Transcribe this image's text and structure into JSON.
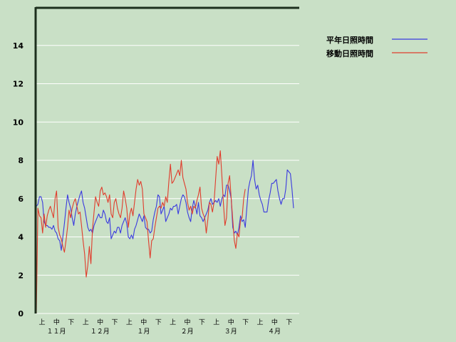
{
  "chart_data": {
    "type": "line",
    "title": "",
    "xlabel": "",
    "ylabel": "",
    "ylim": [
      0,
      16
    ],
    "yticks": [
      0,
      2,
      4,
      6,
      8,
      10,
      12,
      14
    ],
    "grid": true,
    "legend_position": "top-right",
    "x_sub_labels": [
      "上",
      "中",
      "下",
      "上",
      "中",
      "下",
      "上",
      "中",
      "下",
      "上",
      "中",
      "下",
      "上",
      "中",
      "下",
      "上",
      "中",
      "下"
    ],
    "x_month_labels": [
      "１１月",
      "１２月",
      "１月",
      "２月",
      "３月",
      "４月"
    ],
    "series": [
      {
        "name": "平年日照時間",
        "color": "#3a3adf",
        "values": [
          5.6,
          5.7,
          6.1,
          6.1,
          5.8,
          4.8,
          4.6,
          4.6,
          4.5,
          4.5,
          4.4,
          4.6,
          4.3,
          4.2,
          3.9,
          3.8,
          3.3,
          4.0,
          4.7,
          5.5,
          6.2,
          5.8,
          5.5,
          5.0,
          4.6,
          5.2,
          5.6,
          5.9,
          6.2,
          6.4,
          5.8,
          5.5,
          5.0,
          4.5,
          4.3,
          4.4,
          4.2,
          4.6,
          4.8,
          5.0,
          5.2,
          5.0,
          5.0,
          5.4,
          5.2,
          4.8,
          4.7,
          5.0,
          3.9,
          4.1,
          4.3,
          4.2,
          4.5,
          4.5,
          4.2,
          4.6,
          4.8,
          5.0,
          4.7,
          4.0,
          3.9,
          4.1,
          3.9,
          4.4,
          4.6,
          4.9,
          5.2,
          5.0,
          4.8,
          5.1,
          4.5,
          4.4,
          4.4,
          4.2,
          4.3,
          4.9,
          5.3,
          5.6,
          6.2,
          6.1,
          5.2,
          5.4,
          5.6,
          4.8,
          5.0,
          5.2,
          5.5,
          5.4,
          5.6,
          5.6,
          5.7,
          5.2,
          5.6,
          6.0,
          6.2,
          6.1,
          5.8,
          5.3,
          5.0,
          4.8,
          5.5,
          5.9,
          5.6,
          5.2,
          5.8,
          5.1,
          5.0,
          4.8,
          5.0,
          5.2,
          5.4,
          5.8,
          6.0,
          5.7,
          5.8,
          5.9,
          5.8,
          6.0,
          5.6,
          6.0,
          6.2,
          6.1,
          6.7,
          6.7,
          6.4,
          6.0,
          4.5,
          4.2,
          4.3,
          4.1,
          4.5,
          5.1,
          4.8,
          4.9,
          4.5,
          5.5,
          6.5,
          6.9,
          7.2,
          8.0,
          7.0,
          6.5,
          6.7,
          6.2,
          5.9,
          5.7,
          5.3,
          5.3,
          5.3,
          5.9,
          6.3,
          6.8,
          6.8,
          6.9,
          7.0,
          6.4,
          6.0,
          5.7,
          6.0,
          6.0,
          6.5,
          7.5,
          7.4,
          7.3,
          6.5,
          5.5
        ]
      },
      {
        "name": "移動日照時間",
        "color": "#e03c2c",
        "values": [
          0.0,
          5.5,
          5.1,
          5.0,
          4.2,
          5.2,
          4.5,
          5.1,
          5.4,
          5.6,
          5.3,
          5.0,
          6.0,
          6.4,
          4.5,
          4.1,
          3.9,
          3.5,
          3.2,
          3.8,
          4.5,
          5.4,
          5.0,
          5.5,
          5.8,
          6.0,
          5.6,
          5.2,
          5.3,
          4.6,
          3.8,
          3.1,
          1.9,
          2.5,
          3.5,
          2.6,
          4.4,
          5.3,
          6.1,
          5.8,
          5.6,
          6.4,
          6.6,
          6.2,
          6.3,
          6.1,
          5.8,
          6.2,
          5.2,
          5.0,
          5.8,
          6.0,
          5.5,
          5.2,
          5.0,
          5.5,
          6.4,
          6.0,
          5.5,
          4.5,
          5.2,
          5.5,
          5.1,
          5.8,
          6.5,
          7.0,
          6.7,
          6.9,
          6.5,
          5.2,
          5.0,
          4.8,
          3.8,
          2.9,
          3.8,
          3.9,
          4.5,
          5.0,
          5.5,
          5.6,
          5.5,
          5.8,
          5.6,
          6.1,
          5.8,
          6.9,
          7.8,
          6.8,
          6.9,
          7.1,
          7.3,
          7.5,
          7.2,
          8.0,
          7.1,
          6.8,
          6.5,
          5.8,
          5.4,
          5.6,
          5.2,
          5.6,
          5.5,
          5.9,
          6.2,
          6.6,
          5.5,
          5.2,
          5.0,
          4.2,
          4.9,
          5.8,
          5.7,
          5.3,
          5.8,
          7.0,
          8.2,
          7.8,
          8.5,
          7.2,
          5.8,
          4.6,
          5.0,
          6.8,
          7.2,
          6.0,
          4.9,
          3.8,
          3.4,
          4.2,
          4.0,
          4.9,
          5.0,
          6.0,
          6.5
        ]
      }
    ]
  }
}
